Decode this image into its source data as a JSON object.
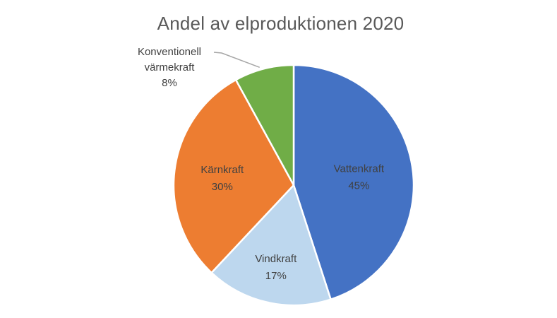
{
  "chart_data": {
    "type": "pie",
    "title": "Andel av elproduktionen 2020",
    "slices": [
      {
        "name": "Vattenkraft",
        "value": 45,
        "label": "45%",
        "color": "#4472C4"
      },
      {
        "name": "Vindkraft",
        "value": 17,
        "label": "17%",
        "color": "#BDD7EE"
      },
      {
        "name": "Kärnkraft",
        "value": 30,
        "label": "30%",
        "color": "#ED7D31"
      },
      {
        "name": "Konventionell värmekraft",
        "value": 8,
        "label": "8%",
        "color": "#70AD47"
      }
    ],
    "outer_label_lines": [
      "Konventionell",
      "värmekraft"
    ],
    "legend": false
  }
}
